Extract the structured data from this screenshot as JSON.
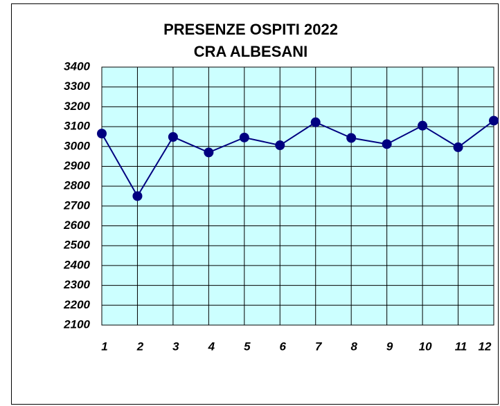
{
  "chart_data": {
    "type": "line",
    "title": "PRESENZE OSPITI 2022",
    "subtitle": "CRA ALBESANI",
    "categories": [
      "1",
      "2",
      "3",
      "4",
      "5",
      "6",
      "7",
      "8",
      "9",
      "10",
      "11",
      "12"
    ],
    "series": [
      {
        "color": "#000080",
        "values": [
          3065,
          2750,
          3048,
          2970,
          3045,
          3006,
          3122,
          3043,
          3012,
          3105,
          2996,
          3130
        ]
      }
    ],
    "ylim": [
      2100,
      3400
    ],
    "yticks": [
      2100,
      2200,
      2300,
      2400,
      2500,
      2600,
      2700,
      2800,
      2900,
      3000,
      3100,
      3200,
      3300,
      3400
    ],
    "grid": true,
    "plot_background": "#ccffff"
  }
}
